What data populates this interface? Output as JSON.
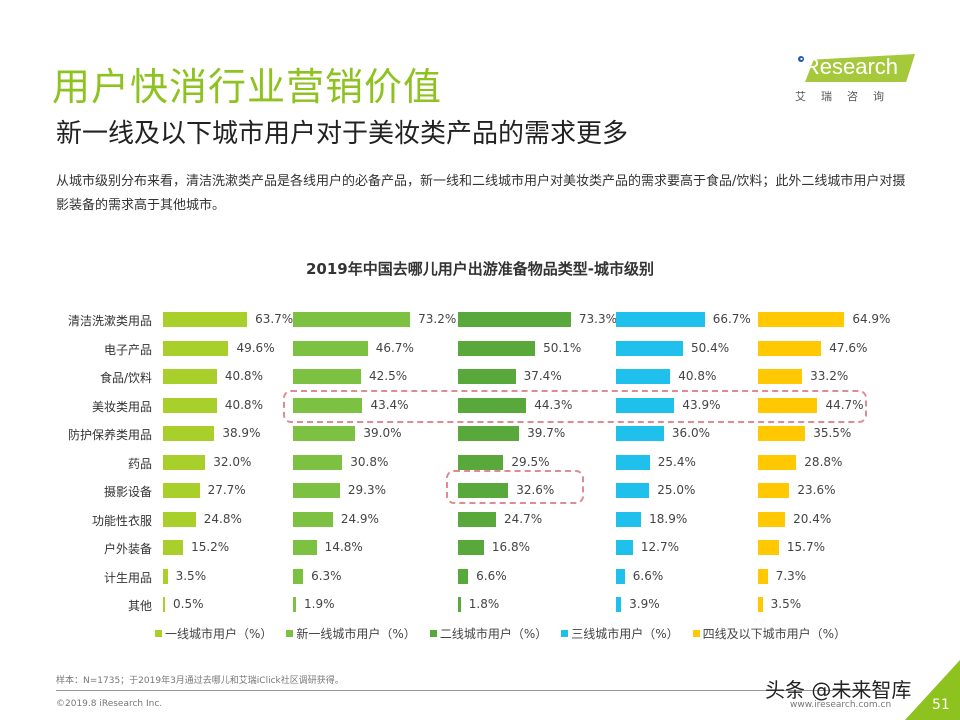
{
  "header": {
    "title": "用户快消行业营销价值",
    "subtitle": "新一线及以下城市用户对于美妆类产品的需求更多",
    "description": "从城市级别分布来看，清洁洗漱类产品是各线用户的必备产品，新一线和二线城市用户对美妆类产品的需求要高于食品/饮料；此外二线城市用户对摄影装备的需求高于其他城市。"
  },
  "logo": {
    "text": "iResearch",
    "cn": "艾瑞咨询",
    "color": "#a5c93a"
  },
  "chart_data": {
    "type": "bar",
    "orientation": "horizontal",
    "title": "2019年中国去哪儿用户出游准备物品类型-城市级别",
    "categories": [
      "清洁洗漱类用品",
      "电子产品",
      "食品/饮料",
      "美妆类用品",
      "防护保养类用品",
      "药品",
      "摄影设备",
      "功能性衣服",
      "户外装备",
      "计生用品",
      "其他"
    ],
    "series": [
      {
        "name": "一线城市用户（%）",
        "color": "#a9cf2b",
        "values": [
          63.7,
          49.6,
          40.8,
          40.8,
          38.9,
          32.0,
          27.7,
          24.8,
          15.2,
          3.5,
          0.5
        ],
        "labels": [
          "63.7%",
          "49.6%",
          "40.8%",
          "40.8%",
          "38.9%",
          "32.0%",
          "27.7%",
          "24.8%",
          "15.2%",
          "3.5%",
          "0.5%"
        ]
      },
      {
        "name": "新一线城市用户（%）",
        "color": "#7cc142",
        "values": [
          73.2,
          46.7,
          42.5,
          43.4,
          39.0,
          30.8,
          29.3,
          24.9,
          14.8,
          6.3,
          1.9
        ],
        "labels": [
          "73.2%",
          "46.7%",
          "42.5%",
          "43.4%",
          "39.0%",
          "30.8%",
          "29.3%",
          "24.9%",
          "14.8%",
          "6.3%",
          "1.9%"
        ]
      },
      {
        "name": "二线城市用户（%）",
        "color": "#58a83c",
        "values": [
          73.3,
          50.1,
          37.4,
          44.3,
          39.7,
          29.5,
          32.6,
          24.7,
          16.8,
          6.6,
          1.8
        ],
        "labels": [
          "73.3%",
          "50.1%",
          "37.4%",
          "44.3%",
          "39.7%",
          "29.5%",
          "32.6%",
          "24.7%",
          "16.8%",
          "6.6%",
          "1.8%"
        ]
      },
      {
        "name": "三线城市用户（%）",
        "color": "#1fc0ec",
        "values": [
          66.7,
          50.4,
          40.8,
          43.9,
          36.0,
          25.4,
          25.0,
          18.9,
          12.7,
          6.6,
          3.9
        ],
        "labels": [
          "66.7%",
          "50.4%",
          "40.8%",
          "43.9%",
          "36.0%",
          "25.4%",
          "25.0%",
          "18.9%",
          "12.7%",
          "6.6%",
          "3.9%"
        ]
      },
      {
        "name": "四线及以下城市用户（%）",
        "color": "#ffc800",
        "values": [
          64.9,
          47.6,
          33.2,
          44.7,
          35.5,
          28.8,
          23.6,
          20.4,
          15.7,
          7.3,
          3.5
        ],
        "labels": [
          "64.9%",
          "47.6%",
          "33.2%",
          "44.7%",
          "35.5%",
          "28.8%",
          "23.6%",
          "20.4%",
          "15.7%",
          "7.3%",
          "3.5%"
        ]
      }
    ],
    "legend": "bottom",
    "grid": false,
    "highlights": [
      "美妆类用品 (新一线/二线/三线/四线及以下)",
      "摄影设备 (二线)"
    ]
  },
  "footer": {
    "note": "样本：N=1735；于2019年3月通过去哪儿和艾瑞iClick社区调研获得。",
    "copyright": "©2019.8 iResearch Inc.",
    "url": "www.iresearch.com.cn",
    "watermark": "头条 @未来智库",
    "page": "51"
  }
}
